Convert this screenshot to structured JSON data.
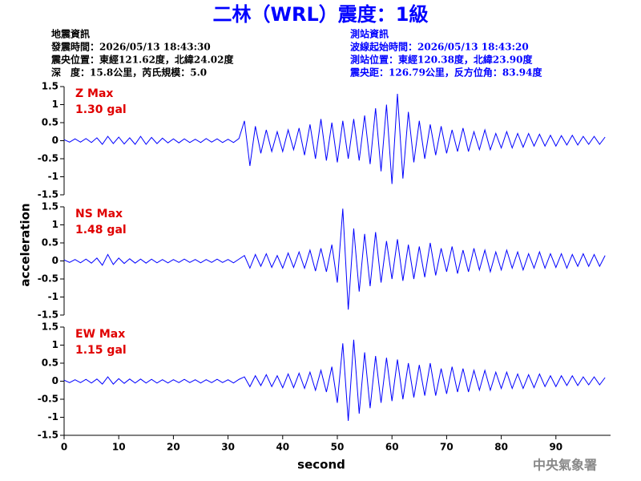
{
  "title": "二林（WRL）震度：1級",
  "info_left": [
    "地震資訊",
    "發震時間：2026/05/13 18:43:30",
    "震央位置：東經121.62度，北緯24.02度",
    "深　度：15.8公里，芮氏規模：5.0"
  ],
  "info_right": [
    "測站資訊",
    "波線起始時間：2026/05/13 18:43:20",
    "測站位置：東經120.38度，北緯23.90度",
    "震央距：126.79公里，反方位角：83.94度"
  ],
  "footer": "中央氣象署",
  "chart_data": [
    {
      "type": "line",
      "color": "#0000ff",
      "annotations": [
        "Z Max",
        "1.30 gal"
      ],
      "xlim": [
        0,
        100
      ],
      "ylim": [
        -1.5,
        1.5
      ],
      "yticks": [
        -1.5,
        -1,
        -0.5,
        0,
        0.5,
        1,
        1.5
      ],
      "x": [
        0,
        1,
        2,
        3,
        4,
        5,
        6,
        7,
        8,
        9,
        10,
        11,
        12,
        13,
        14,
        15,
        16,
        17,
        18,
        19,
        20,
        21,
        22,
        23,
        24,
        25,
        26,
        27,
        28,
        29,
        30,
        31,
        32,
        33,
        34,
        35,
        36,
        37,
        38,
        39,
        40,
        41,
        42,
        43,
        44,
        45,
        46,
        47,
        48,
        49,
        50,
        51,
        52,
        53,
        54,
        55,
        56,
        57,
        58,
        59,
        60,
        61,
        62,
        63,
        64,
        65,
        66,
        67,
        68,
        69,
        70,
        71,
        72,
        73,
        74,
        75,
        76,
        77,
        78,
        79,
        80,
        81,
        82,
        83,
        84,
        85,
        86,
        87,
        88,
        89,
        90,
        91,
        92,
        93,
        94,
        95,
        96,
        97,
        98,
        99
      ],
      "values": [
        0.03,
        -0.04,
        0.05,
        -0.04,
        0.06,
        -0.05,
        0.08,
        -0.1,
        0.12,
        -0.08,
        0.1,
        -0.09,
        0.08,
        -0.1,
        0.12,
        -0.1,
        0.09,
        -0.08,
        0.07,
        -0.06,
        0.05,
        -0.06,
        0.05,
        -0.05,
        0.04,
        -0.05,
        0.06,
        -0.04,
        0.05,
        -0.05,
        0.04,
        -0.05,
        0.06,
        0.55,
        -0.7,
        0.4,
        -0.35,
        0.3,
        -0.3,
        0.25,
        -0.3,
        0.3,
        -0.25,
        0.35,
        -0.4,
        0.45,
        -0.5,
        0.6,
        -0.55,
        0.5,
        -0.6,
        0.55,
        -0.5,
        0.6,
        -0.55,
        0.7,
        -0.65,
        0.9,
        -0.85,
        1.0,
        -1.2,
        1.3,
        -1.05,
        0.8,
        -0.6,
        0.55,
        -0.5,
        0.45,
        -0.4,
        0.4,
        -0.35,
        0.3,
        -0.3,
        0.35,
        -0.3,
        0.25,
        -0.25,
        0.3,
        -0.25,
        0.2,
        -0.2,
        0.25,
        -0.2,
        0.2,
        -0.18,
        0.2,
        -0.15,
        0.18,
        -0.15,
        0.15,
        -0.15,
        0.14,
        -0.12,
        0.15,
        -0.12,
        0.12,
        -0.1,
        0.12,
        -0.1,
        0.1
      ]
    },
    {
      "type": "line",
      "color": "#0000ff",
      "annotations": [
        "NS Max",
        "1.48 gal"
      ],
      "y_label": "acceleration",
      "xlim": [
        0,
        100
      ],
      "ylim": [
        -1.5,
        1.5
      ],
      "yticks": [
        -1.5,
        -1,
        -0.5,
        0,
        0.5,
        1,
        1.5
      ],
      "x": [
        0,
        1,
        2,
        3,
        4,
        5,
        6,
        7,
        8,
        9,
        10,
        11,
        12,
        13,
        14,
        15,
        16,
        17,
        18,
        19,
        20,
        21,
        22,
        23,
        24,
        25,
        26,
        27,
        28,
        29,
        30,
        31,
        32,
        33,
        34,
        35,
        36,
        37,
        38,
        39,
        40,
        41,
        42,
        43,
        44,
        45,
        46,
        47,
        48,
        49,
        50,
        51,
        52,
        53,
        54,
        55,
        56,
        57,
        58,
        59,
        60,
        61,
        62,
        63,
        64,
        65,
        66,
        67,
        68,
        69,
        70,
        71,
        72,
        73,
        74,
        75,
        76,
        77,
        78,
        79,
        80,
        81,
        82,
        83,
        84,
        85,
        86,
        87,
        88,
        89,
        90,
        91,
        92,
        93,
        94,
        95,
        96,
        97,
        98,
        99
      ],
      "values": [
        0.03,
        -0.04,
        0.04,
        -0.05,
        0.05,
        -0.06,
        0.08,
        -0.12,
        0.18,
        -0.1,
        0.08,
        -0.07,
        0.06,
        -0.06,
        0.05,
        -0.06,
        0.05,
        -0.05,
        0.04,
        -0.05,
        0.04,
        -0.04,
        0.05,
        -0.04,
        0.04,
        -0.05,
        0.04,
        -0.04,
        0.05,
        -0.04,
        0.04,
        -0.05,
        0.05,
        0.15,
        -0.2,
        0.18,
        -0.15,
        0.2,
        -0.18,
        0.15,
        -0.2,
        0.22,
        -0.18,
        0.25,
        -0.2,
        0.3,
        -0.28,
        0.35,
        -0.3,
        0.45,
        -0.6,
        1.45,
        -1.35,
        0.9,
        -0.85,
        0.75,
        -0.7,
        0.8,
        -0.6,
        0.55,
        -0.5,
        0.6,
        -0.55,
        0.45,
        -0.5,
        0.4,
        -0.45,
        0.5,
        -0.4,
        0.35,
        -0.3,
        0.4,
        -0.35,
        0.3,
        -0.3,
        0.35,
        -0.25,
        0.3,
        -0.3,
        0.25,
        -0.25,
        0.3,
        -0.2,
        0.25,
        -0.25,
        0.2,
        -0.2,
        0.25,
        -0.2,
        0.2,
        -0.18,
        0.2,
        -0.2,
        0.18,
        -0.15,
        0.2,
        -0.15,
        0.18,
        -0.15,
        0.15
      ]
    },
    {
      "type": "line",
      "color": "#0000ff",
      "annotations": [
        "EW Max",
        "1.15 gal"
      ],
      "x_label": "second",
      "xlim": [
        0,
        100
      ],
      "ylim": [
        -1.5,
        1.5
      ],
      "yticks": [
        -1.5,
        -1,
        -0.5,
        0,
        0.5,
        1,
        1.5
      ],
      "xticks": [
        0,
        10,
        20,
        30,
        40,
        50,
        60,
        70,
        80,
        90
      ],
      "x": [
        0,
        1,
        2,
        3,
        4,
        5,
        6,
        7,
        8,
        9,
        10,
        11,
        12,
        13,
        14,
        15,
        16,
        17,
        18,
        19,
        20,
        21,
        22,
        23,
        24,
        25,
        26,
        27,
        28,
        29,
        30,
        31,
        32,
        33,
        34,
        35,
        36,
        37,
        38,
        39,
        40,
        41,
        42,
        43,
        44,
        45,
        46,
        47,
        48,
        49,
        50,
        51,
        52,
        53,
        54,
        55,
        56,
        57,
        58,
        59,
        60,
        61,
        62,
        63,
        64,
        65,
        66,
        67,
        68,
        69,
        70,
        71,
        72,
        73,
        74,
        75,
        76,
        77,
        78,
        79,
        80,
        81,
        82,
        83,
        84,
        85,
        86,
        87,
        88,
        89,
        90,
        91,
        92,
        93,
        94,
        95,
        96,
        97,
        98,
        99
      ],
      "values": [
        0.03,
        -0.04,
        0.04,
        -0.04,
        0.05,
        -0.05,
        0.06,
        -0.08,
        0.12,
        -0.08,
        0.07,
        -0.06,
        0.06,
        -0.05,
        0.06,
        -0.05,
        0.05,
        -0.05,
        0.04,
        -0.05,
        0.04,
        -0.04,
        0.05,
        -0.04,
        0.04,
        -0.05,
        0.04,
        -0.04,
        0.05,
        -0.04,
        0.04,
        -0.05,
        0.05,
        0.12,
        -0.15,
        0.15,
        -0.12,
        0.18,
        -0.15,
        0.15,
        -0.18,
        0.2,
        -0.18,
        0.22,
        -0.2,
        0.25,
        -0.25,
        0.3,
        -0.3,
        0.4,
        -0.6,
        1.05,
        -1.1,
        1.15,
        -0.9,
        0.8,
        -0.75,
        0.7,
        -0.6,
        0.65,
        -0.55,
        0.6,
        -0.5,
        0.5,
        -0.45,
        0.45,
        -0.4,
        0.5,
        -0.4,
        0.35,
        -0.35,
        0.4,
        -0.3,
        0.35,
        -0.3,
        0.3,
        -0.25,
        0.3,
        -0.25,
        0.25,
        -0.2,
        0.25,
        -0.2,
        0.2,
        -0.2,
        0.18,
        -0.18,
        0.2,
        -0.15,
        0.15,
        -0.15,
        0.15,
        -0.12,
        0.15,
        -0.12,
        0.12,
        -0.1,
        0.12,
        -0.1,
        0.1
      ]
    }
  ]
}
